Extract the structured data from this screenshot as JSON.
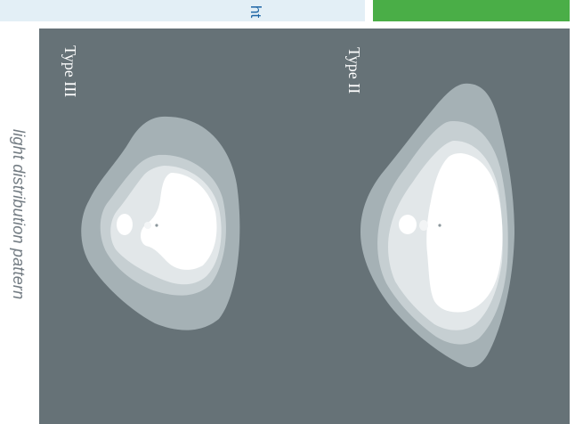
{
  "header": {
    "partial_title": "ht",
    "accent_color": "#4aae47",
    "band_color": "#e3eff6"
  },
  "side_label": "light distribution pattern",
  "diagram": {
    "background_color": "#667277",
    "patterns": [
      {
        "name": "Type III",
        "label": "Type III"
      },
      {
        "name": "Type II",
        "label": "Type II"
      }
    ]
  }
}
